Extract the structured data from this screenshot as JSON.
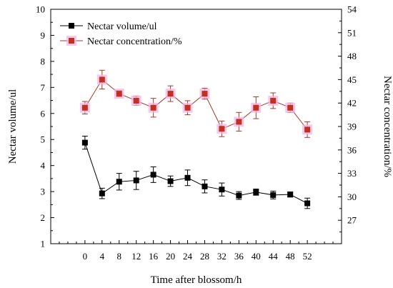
{
  "colors": {
    "volume": "#000000",
    "concentration_line": "#a33a2a",
    "concentration_marker": "#c0321f",
    "concentration_marker_edge": "#f1b6e6",
    "axis": "#000000"
  },
  "chart_data": {
    "type": "line",
    "x": [
      0,
      4,
      8,
      12,
      16,
      20,
      24,
      28,
      32,
      36,
      40,
      44,
      48,
      52
    ],
    "xlabel": "Time after blossom/h",
    "y_left": {
      "label": "Nectar volume/ul",
      "lim": [
        1,
        10
      ],
      "ticks": [
        1,
        2,
        3,
        4,
        5,
        6,
        7,
        8,
        9,
        10
      ]
    },
    "y_right": {
      "label": "Nectar concentration/%",
      "lim": [
        24,
        54
      ],
      "ticks": [
        27,
        30,
        33,
        36,
        39,
        42,
        45,
        48,
        51,
        54
      ]
    },
    "legend": "top-left",
    "grid": false,
    "series": [
      {
        "name": "Nectar volume/ul",
        "axis": "left",
        "marker": "square",
        "values": [
          4.88,
          2.93,
          3.38,
          3.43,
          3.65,
          3.4,
          3.53,
          3.2,
          3.08,
          2.85,
          2.98,
          2.87,
          2.89,
          2.55
        ],
        "errors": [
          0.25,
          0.2,
          0.32,
          0.35,
          0.3,
          0.2,
          0.3,
          0.25,
          0.25,
          0.15,
          0.12,
          0.15,
          0.1,
          0.2
        ]
      },
      {
        "name": "Nectar concentration/%",
        "axis": "right",
        "marker": "square",
        "values": [
          41.4,
          45.0,
          43.2,
          42.3,
          41.4,
          43.2,
          41.4,
          43.2,
          38.7,
          39.6,
          41.4,
          42.3,
          41.4,
          38.6
        ],
        "errors": [
          0.8,
          1.2,
          0.4,
          0.6,
          1.2,
          1.0,
          0.9,
          0.7,
          1.0,
          1.2,
          1.4,
          1.0,
          0.6,
          1.0
        ]
      }
    ]
  }
}
